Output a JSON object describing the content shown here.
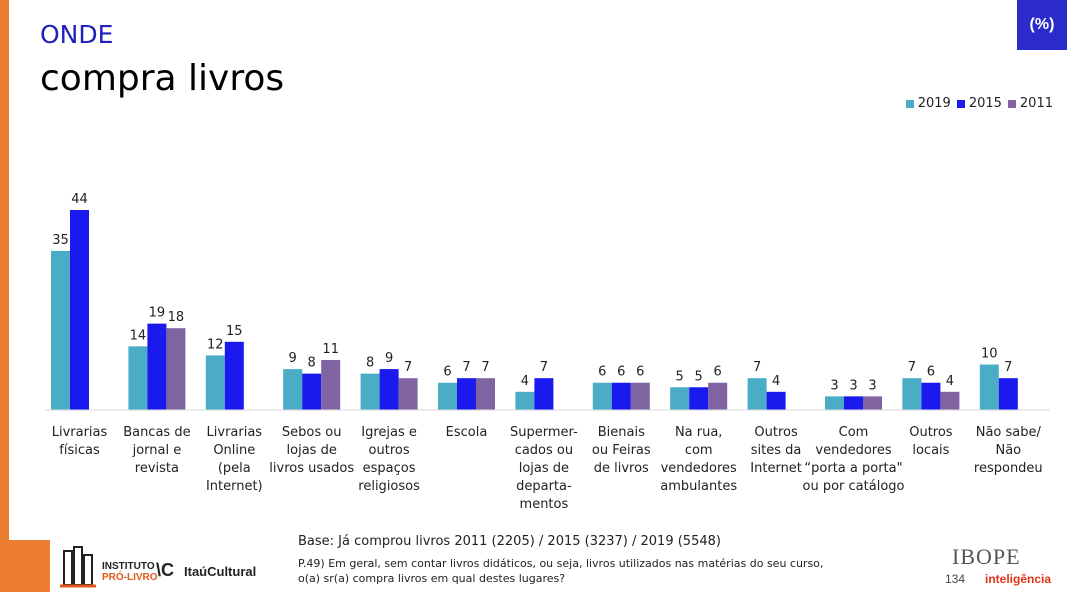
{
  "header": {
    "title_small": "ONDE",
    "title_big": "compra livros",
    "unit_badge": "(%)"
  },
  "colors": {
    "accent_orange": "#ed7d31",
    "title_blue": "#1f1fbf",
    "badge_blue": "#2b2bcc"
  },
  "chart_data": {
    "type": "bar",
    "categories": [
      [
        "Livrarias",
        "físicas"
      ],
      [
        "Bancas de",
        "jornal e",
        "revista"
      ],
      [
        "Livrarias",
        "Online",
        "(pela",
        "Internet)"
      ],
      [
        "Sebos ou",
        "lojas de",
        "livros usados"
      ],
      [
        "Igrejas e",
        "outros",
        "espaços",
        "religiosos"
      ],
      [
        "Escola"
      ],
      [
        "Supermer-",
        "cados ou",
        "lojas de",
        "departa-",
        "mentos"
      ],
      [
        "Bienais",
        "ou Feiras",
        "de livros"
      ],
      [
        "Na rua,",
        "com",
        "vendedores",
        "ambulantes"
      ],
      [
        "Outros",
        "sites da",
        "Internet"
      ],
      [
        "Com",
        "vendedores",
        "“porta a porta\"",
        "ou por catálogo"
      ],
      [
        "Outros",
        "locais"
      ],
      [
        "Não sabe/",
        "Não",
        "respondeu"
      ]
    ],
    "series": [
      {
        "name": "2019",
        "color": "#4bacc6",
        "values": [
          35,
          14,
          12,
          9,
          8,
          6,
          4,
          6,
          5,
          7,
          3,
          7,
          10
        ]
      },
      {
        "name": "2015",
        "color": "#1a1aee",
        "values": [
          44,
          19,
          15,
          8,
          9,
          7,
          7,
          6,
          5,
          4,
          3,
          6,
          7
        ]
      },
      {
        "name": "2011",
        "color": "#8064a2",
        "values": [
          null,
          18,
          null,
          11,
          7,
          7,
          null,
          6,
          6,
          null,
          3,
          4,
          null
        ]
      }
    ],
    "legend_position": "top-right",
    "grid": false
  },
  "footer": {
    "base": "Base: Já comprou livros 2011 (2205)  / 2015 (3237) / 2019 (5548)",
    "question_line1": "P.49) Em geral, sem contar livros didáticos, ou seja, livros utilizados nas matérias do seu curso,",
    "question_line2": "o(a) sr(a) compra livros em qual destes lugares?",
    "page_number": "134",
    "logo_instituto": "INSTITUTO",
    "logo_prolivro": "PRÓ-LIVRO",
    "logo_mark": "\\C",
    "logo_itau": "ItaúCultural",
    "logo_ibope": "IBOPE",
    "logo_inteligencia": "inteligência"
  }
}
